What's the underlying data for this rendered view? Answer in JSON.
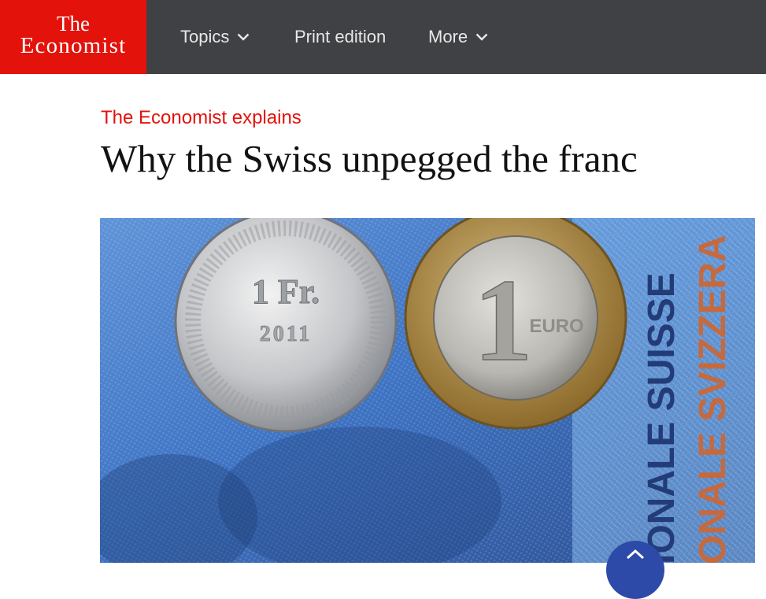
{
  "logo": {
    "line1": "The",
    "line2": "Economist"
  },
  "nav": {
    "topics": "Topics",
    "print_edition": "Print edition",
    "more": "More"
  },
  "article": {
    "kicker": "The Economist explains",
    "headline": "Why the Swiss unpegged the franc"
  },
  "hero_image": {
    "franc_coin": {
      "denomination": "1 Fr.",
      "year": "2011"
    },
    "euro_coin": {
      "denomination": "1",
      "label": "EURO"
    },
    "banknote_text": [
      "IONALE SUISSE",
      "ONALE SVIZZERA"
    ]
  },
  "colors": {
    "brand_red": "#e3120b",
    "nav_bg": "#3f4144",
    "fab_blue": "#2d4aa8"
  },
  "icons": [
    "chevron-down-icon",
    "chevron-up-icon"
  ]
}
